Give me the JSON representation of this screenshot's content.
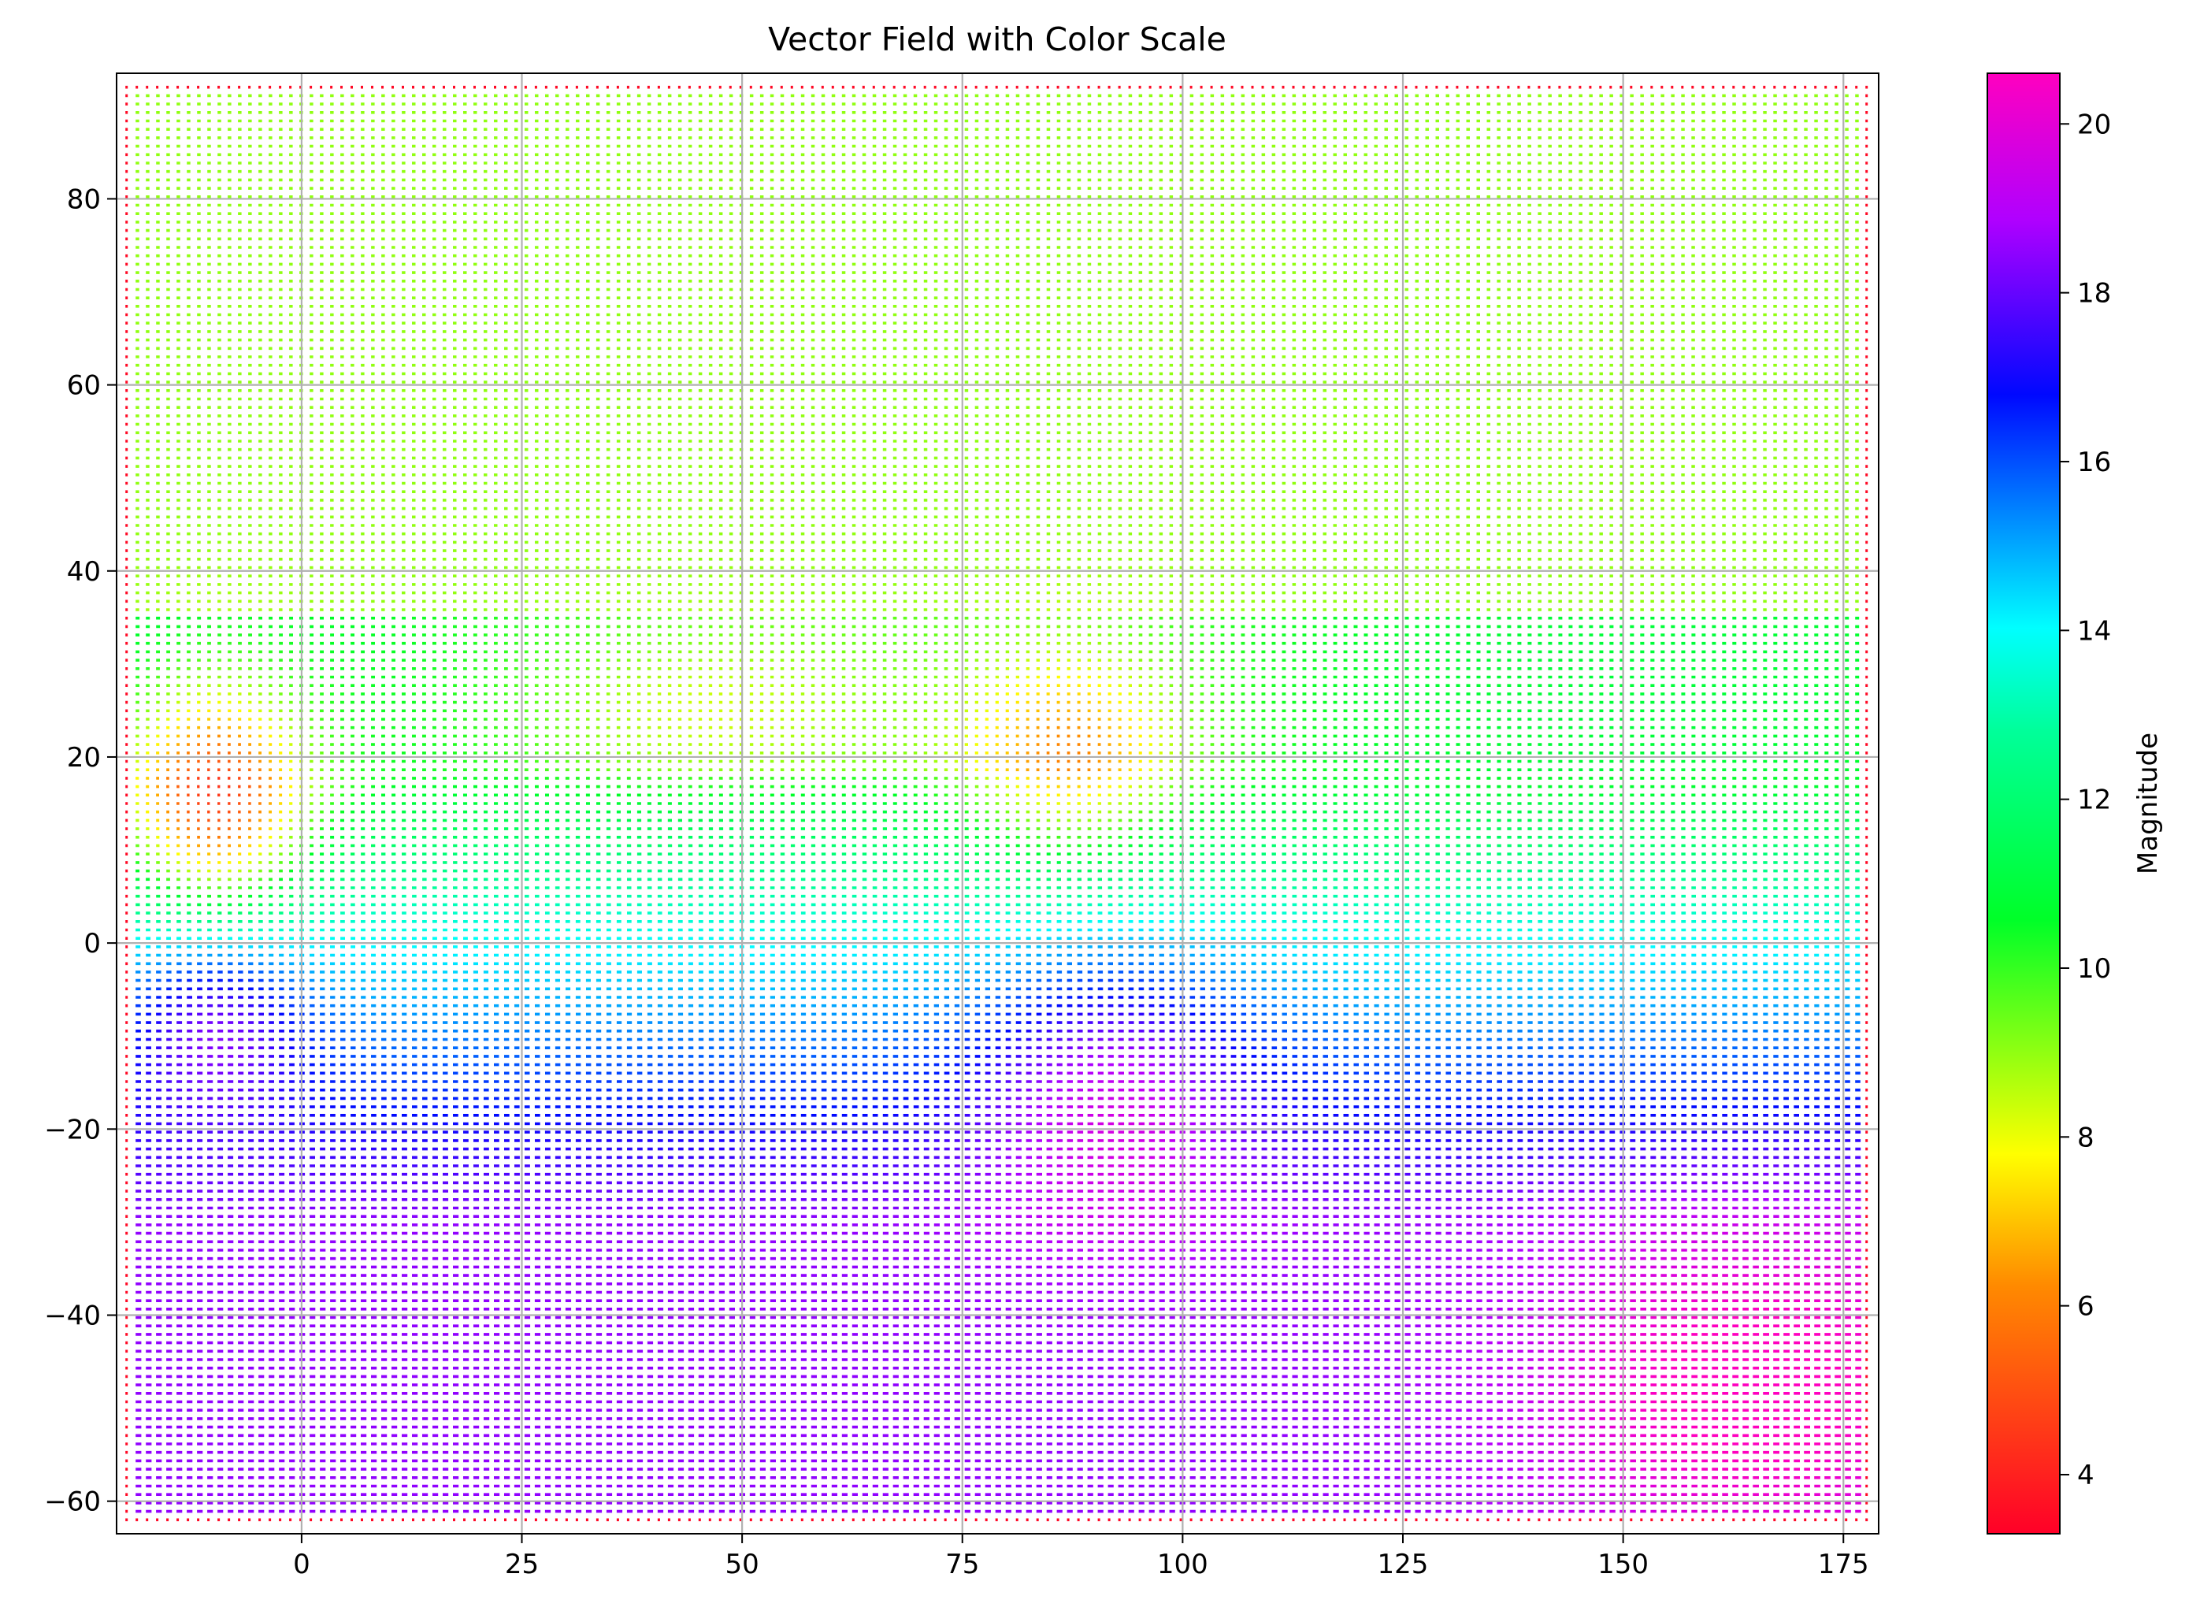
{
  "chart_data": {
    "type": "vector-field",
    "title": "Vector Field with Color Scale",
    "xlabel": "",
    "ylabel": "",
    "xlim": [
      -21,
      179
    ],
    "ylim": [
      -63.5,
      93.5
    ],
    "x_ticks": [
      0,
      25,
      50,
      75,
      100,
      125,
      150,
      175
    ],
    "x_tick_labels": [
      "0",
      "25",
      "50",
      "75",
      "100",
      "125",
      "150",
      "175"
    ],
    "y_ticks": [
      -60,
      -40,
      -20,
      0,
      20,
      40,
      60,
      80
    ],
    "y_tick_labels": [
      "−60",
      "−40",
      "−20",
      "0",
      "20",
      "40",
      "60",
      "80"
    ],
    "grid": true,
    "field_extent": {
      "x": [
        -20,
        177.5
      ],
      "y": [
        -62,
        92
      ]
    },
    "arrow_direction": "left-pointing (negative x)",
    "colorbar": {
      "label": "Magnitude",
      "colormap": "gist_rainbow_r",
      "range": [
        3.3,
        20.6
      ],
      "ticks": [
        4,
        6,
        8,
        10,
        12,
        14,
        16,
        18,
        20
      ],
      "tick_labels": [
        "4",
        "6",
        "8",
        "10",
        "12",
        "14",
        "16",
        "18",
        "20"
      ]
    },
    "magnitude_regions": [
      {
        "region": "top band (y > 35)",
        "magnitude": 9
      },
      {
        "region": "left low spot near (-10, 15)",
        "magnitude": 3.5
      },
      {
        "region": "low spot near (87, 20)",
        "magnitude": 7
      },
      {
        "region": "band near y = 5",
        "magnitude": 13.5
      },
      {
        "region": "high spot near (-10, -8)",
        "magnitude": 19
      },
      {
        "region": "high spot near (90, -15)",
        "magnitude": 20
      },
      {
        "region": "bottom right (x > 130, y < -30)",
        "magnitude": 20.5
      },
      {
        "region": "plot border column/row",
        "magnitude": 3.5
      }
    ]
  }
}
